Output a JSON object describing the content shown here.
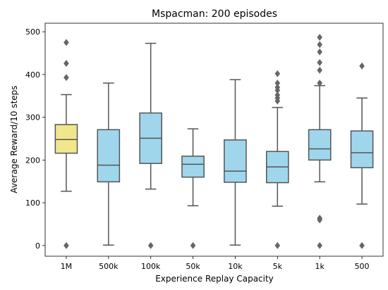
{
  "chart_data": {
    "type": "box",
    "title": "Mspacman: 200 episodes",
    "xlabel": "Experience Replay Capacity",
    "ylabel": "Average Reward/10 steps",
    "ylim": [
      -25,
      520
    ],
    "yticks": [
      0,
      100,
      200,
      300,
      400,
      500
    ],
    "grid": false,
    "categories": [
      "1M",
      "500k",
      "100k",
      "50k",
      "10k",
      "5k",
      "1k",
      "500"
    ],
    "boxes": [
      {
        "label": "1M",
        "whisker_low": 127,
        "q1": 216,
        "median": 248,
        "q3": 283,
        "whisker_high": 353,
        "outliers": [
          0,
          393,
          426,
          475
        ]
      },
      {
        "label": "500k",
        "whisker_low": 1,
        "q1": 149,
        "median": 188,
        "q3": 271,
        "whisker_high": 380,
        "outliers": []
      },
      {
        "label": "100k",
        "whisker_low": 132,
        "q1": 192,
        "median": 251,
        "q3": 310,
        "whisker_high": 473,
        "outliers": [
          0
        ]
      },
      {
        "label": "50k",
        "whisker_low": 93,
        "q1": 160,
        "median": 190,
        "q3": 209,
        "whisker_high": 273,
        "outliers": [
          0
        ]
      },
      {
        "label": "10k",
        "whisker_low": 1,
        "q1": 148,
        "median": 174,
        "q3": 247,
        "whisker_high": 388,
        "outliers": []
      },
      {
        "label": "5k",
        "whisker_low": 92,
        "q1": 147,
        "median": 184,
        "q3": 220,
        "whisker_high": 323,
        "outliers": [
          0,
          338,
          345,
          352,
          363,
          370,
          380,
          402
        ]
      },
      {
        "label": "1k",
        "whisker_low": 149,
        "q1": 200,
        "median": 226,
        "q3": 271,
        "whisker_high": 374,
        "outliers": [
          0,
          60,
          64,
          380,
          410,
          428,
          453,
          470,
          487
        ]
      },
      {
        "label": "500",
        "whisker_low": 97,
        "q1": 182,
        "median": 217,
        "q3": 268,
        "whisker_high": 345,
        "outliers": [
          0,
          420
        ]
      }
    ],
    "colors": {
      "highlight_box": "#f0e68c",
      "box": "#9fd6ec",
      "lines": "#555555",
      "outlier": "#666666"
    }
  }
}
